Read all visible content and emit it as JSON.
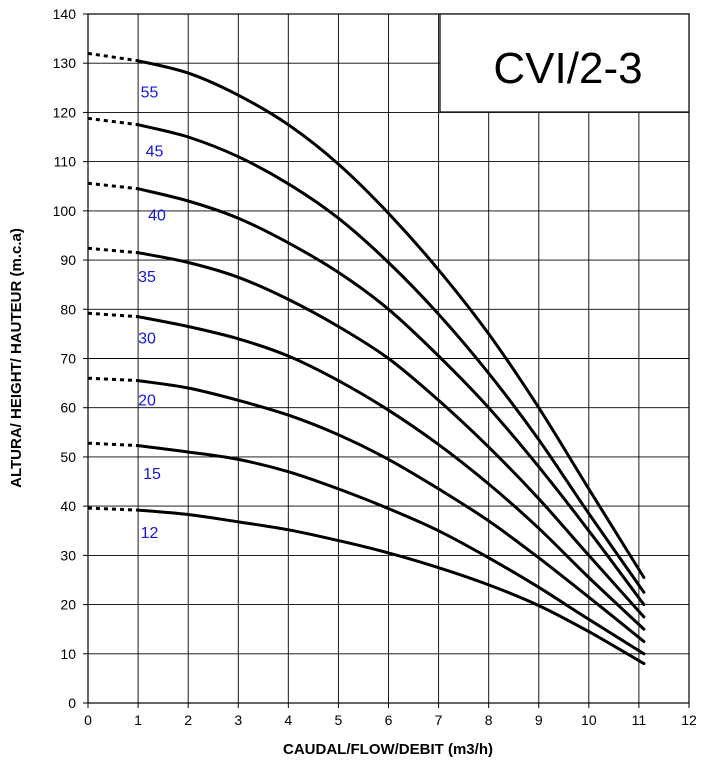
{
  "chart_data": {
    "type": "line",
    "title": "CVI/2-3",
    "xlabel": "CAUDAL/FLOW/DEBIT (m3/h)",
    "ylabel": "ALTURA/ HEIGHT/ HAUTEUR (m.c.a)",
    "xlim": [
      0,
      12
    ],
    "ylim": [
      0,
      140
    ],
    "xticks": [
      0,
      1,
      2,
      3,
      4,
      5,
      6,
      7,
      8,
      9,
      10,
      11,
      12
    ],
    "yticks": [
      0,
      10,
      20,
      30,
      40,
      50,
      60,
      70,
      80,
      90,
      100,
      110,
      120,
      130,
      140
    ],
    "grid": true,
    "line_color": "#000000",
    "label_color": "#1515d2",
    "dashed_extension_from_x": 0,
    "solid_from_x": 1,
    "series": [
      {
        "name": "55",
        "x": [
          0,
          1,
          2,
          3,
          4,
          5,
          6,
          7,
          8,
          9,
          10,
          11.1
        ],
        "values": [
          132,
          130.5,
          128,
          123.5,
          117.5,
          109.5,
          99.5,
          88,
          75,
          60,
          43.5,
          25.5
        ]
      },
      {
        "name": "45",
        "x": [
          0,
          1,
          2,
          3,
          4,
          5,
          6,
          7,
          8,
          9,
          10,
          11.1
        ],
        "values": [
          118.8,
          117.5,
          115,
          111,
          105.5,
          98.5,
          89.5,
          79,
          67,
          53.5,
          38.5,
          22.5
        ]
      },
      {
        "name": "40",
        "x": [
          0,
          1,
          2,
          3,
          4,
          5,
          6,
          7,
          8,
          9,
          10,
          11.1
        ],
        "values": [
          105.6,
          104.5,
          102,
          98.5,
          93.5,
          87.5,
          80,
          70.5,
          60,
          48,
          35,
          20
        ]
      },
      {
        "name": "35",
        "x": [
          0,
          1,
          2,
          3,
          4,
          5,
          6,
          7,
          8,
          9,
          10,
          11.1
        ],
        "values": [
          92.4,
          91.5,
          89.5,
          86.5,
          82,
          76.5,
          70,
          61.5,
          52,
          41.5,
          30,
          17.5
        ]
      },
      {
        "name": "30",
        "x": [
          0,
          1,
          2,
          3,
          4,
          5,
          6,
          7,
          8,
          9,
          10,
          11.1
        ],
        "values": [
          79.2,
          78.5,
          76.5,
          74,
          70.5,
          65.5,
          59.5,
          52.5,
          44.5,
          35.5,
          25.5,
          15
        ]
      },
      {
        "name": "20",
        "x": [
          0,
          1,
          2,
          3,
          4,
          5,
          6,
          7,
          8,
          9,
          10,
          11.1
        ],
        "values": [
          66,
          65.5,
          64,
          61.5,
          58.5,
          54.5,
          49.5,
          43.5,
          37,
          29.5,
          21.5,
          12.5
        ]
      },
      {
        "name": "15",
        "x": [
          0,
          1,
          2,
          3,
          4,
          5,
          6,
          7,
          8,
          9,
          10,
          11.1
        ],
        "values": [
          52.8,
          52.3,
          51,
          49.5,
          47,
          43.5,
          39.5,
          35,
          29.5,
          23.5,
          17,
          10
        ]
      },
      {
        "name": "12",
        "x": [
          0,
          1,
          2,
          3,
          4,
          5,
          6,
          7,
          8,
          9,
          10,
          11.1
        ],
        "values": [
          39.6,
          39.2,
          38.3,
          36.8,
          35.2,
          33,
          30.5,
          27.5,
          24,
          19.8,
          14.5,
          8
        ]
      }
    ],
    "curve_labels": [
      {
        "text": "55",
        "x": 1.05,
        "y": 123
      },
      {
        "text": "45",
        "x": 1.15,
        "y": 111
      },
      {
        "text": "40",
        "x": 1.2,
        "y": 98
      },
      {
        "text": "35",
        "x": 1.0,
        "y": 85.5
      },
      {
        "text": "30",
        "x": 1.0,
        "y": 73
      },
      {
        "text": "20",
        "x": 1.0,
        "y": 60.5
      },
      {
        "text": "15",
        "x": 1.1,
        "y": 45.5
      },
      {
        "text": "12",
        "x": 1.05,
        "y": 33.5
      }
    ]
  }
}
